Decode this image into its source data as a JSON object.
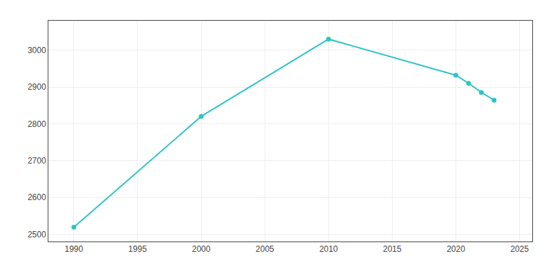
{
  "chart_data": {
    "type": "line",
    "x": [
      1990,
      2000,
      2010,
      2020,
      2021,
      2022,
      2023
    ],
    "values": [
      2519,
      2820,
      3030,
      2932,
      2910,
      2885,
      2864
    ],
    "color": "#2ec4c4",
    "marker": "circle",
    "xlim": [
      1988,
      2026
    ],
    "ylim": [
      2480,
      3080
    ],
    "xticks": [
      1990,
      1995,
      2000,
      2005,
      2010,
      2015,
      2020,
      2025
    ],
    "yticks": [
      2500,
      2600,
      2700,
      2800,
      2900,
      3000
    ],
    "grid": true
  }
}
